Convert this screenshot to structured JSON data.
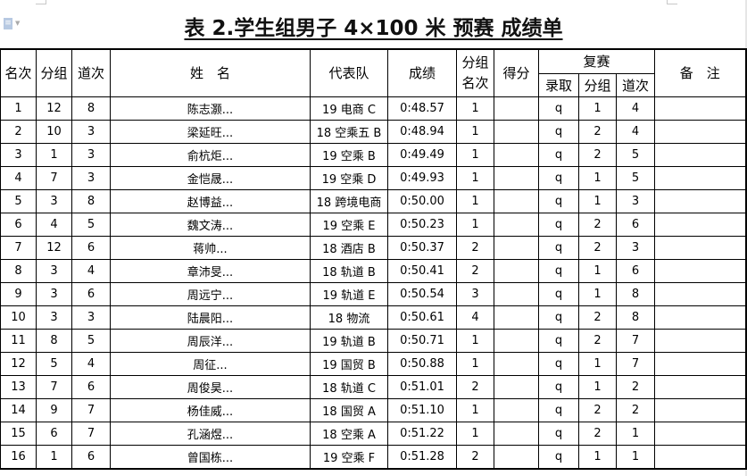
{
  "title": "表 2.学生组男子 4×100 米  预赛  成绩单",
  "headers": {
    "rank": "名次",
    "group": "分组",
    "lane": "道次",
    "name": "姓　名",
    "team": "代表队",
    "result": "成绩",
    "group_rank": "分组名次",
    "score": "得分",
    "semifinal": "复赛",
    "admit": "录取",
    "semi_group": "分组",
    "semi_lane": "道次",
    "remarks": "备　注"
  },
  "rows": [
    [
      "1",
      "12",
      "8",
      "陈志灏...",
      "19 电商 C",
      "0:48.57",
      "1",
      "",
      "q",
      "1",
      "4",
      ""
    ],
    [
      "2",
      "10",
      "3",
      "梁延旺...",
      "18 空乘五 B",
      "0:48.94",
      "1",
      "",
      "q",
      "2",
      "4",
      ""
    ],
    [
      "3",
      "1",
      "3",
      "俞杭炬...",
      "19 空乘 B",
      "0:49.49",
      "1",
      "",
      "q",
      "2",
      "5",
      ""
    ],
    [
      "4",
      "7",
      "3",
      "金恺晟...",
      "19 空乘 D",
      "0:49.93",
      "1",
      "",
      "q",
      "1",
      "5",
      ""
    ],
    [
      "5",
      "3",
      "8",
      "赵博益...",
      "18 跨境电商",
      "0:50.00",
      "1",
      "",
      "q",
      "1",
      "3",
      ""
    ],
    [
      "6",
      "4",
      "5",
      "魏文涛...",
      "19 空乘 E",
      "0:50.23",
      "1",
      "",
      "q",
      "2",
      "6",
      ""
    ],
    [
      "7",
      "12",
      "6",
      "蒋帅...",
      "18 酒店 B",
      "0:50.37",
      "2",
      "",
      "q",
      "2",
      "3",
      ""
    ],
    [
      "8",
      "3",
      "4",
      "章沛旻...",
      "18 轨道 B",
      "0:50.41",
      "2",
      "",
      "q",
      "1",
      "6",
      ""
    ],
    [
      "9",
      "3",
      "6",
      "周远宁...",
      "19 轨道 E",
      "0:50.54",
      "3",
      "",
      "q",
      "1",
      "8",
      ""
    ],
    [
      "10",
      "3",
      "3",
      "陆晨阳...",
      "18 物流",
      "0:50.61",
      "4",
      "",
      "q",
      "2",
      "8",
      ""
    ],
    [
      "11",
      "8",
      "5",
      "周辰洋...",
      "19 轨道 B",
      "0:50.71",
      "1",
      "",
      "q",
      "2",
      "7",
      ""
    ],
    [
      "12",
      "5",
      "4",
      "周征...",
      "19 国贸 B",
      "0:50.88",
      "1",
      "",
      "q",
      "1",
      "7",
      ""
    ],
    [
      "13",
      "7",
      "6",
      "周俊昊...",
      "18 轨道 C",
      "0:51.01",
      "2",
      "",
      "q",
      "1",
      "2",
      ""
    ],
    [
      "14",
      "9",
      "7",
      "杨佳威...",
      "18 国贸 A",
      "0:51.10",
      "1",
      "",
      "q",
      "2",
      "2",
      ""
    ],
    [
      "15",
      "6",
      "7",
      "孔涵煜...",
      "18 空乘 A",
      "0:51.22",
      "1",
      "",
      "q",
      "2",
      "1",
      ""
    ],
    [
      "16",
      "1",
      "6",
      "曾国栋...",
      "19 空乘 F",
      "0:51.28",
      "2",
      "",
      "q",
      "1",
      "1",
      ""
    ]
  ]
}
